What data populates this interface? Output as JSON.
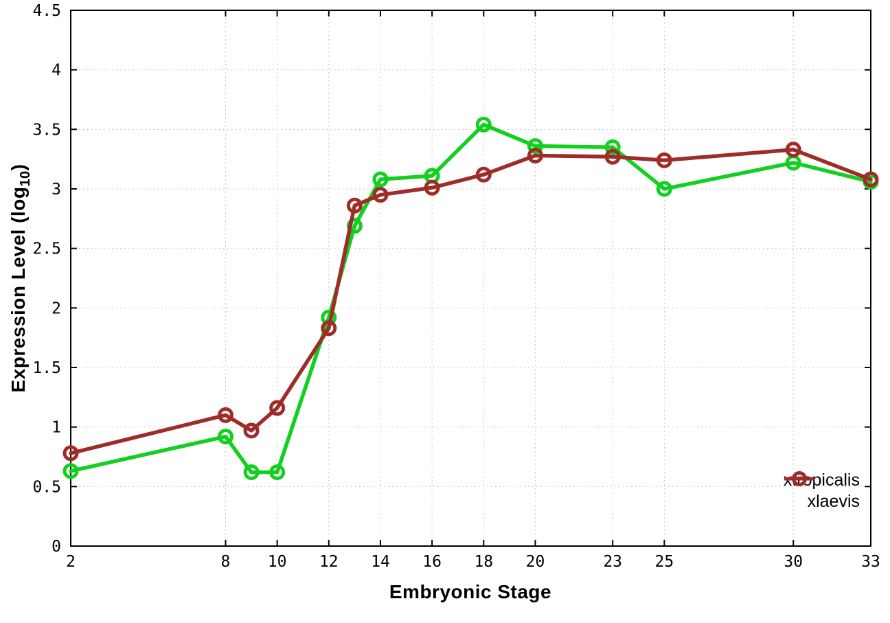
{
  "chart_data": {
    "type": "line",
    "title": "",
    "xlabel": "Embryonic Stage",
    "ylabel": "Expression Level (log10)",
    "ylabel_parts": {
      "main": "Expression Level (log",
      "sub": "10",
      "end": ")"
    },
    "x": [
      2,
      8,
      9,
      10,
      12,
      13,
      14,
      16,
      18,
      20,
      23,
      25,
      30,
      33
    ],
    "series": [
      {
        "name": "xtropicalis",
        "color": "#12d01f",
        "values": [
          0.63,
          0.92,
          0.62,
          0.62,
          1.92,
          2.69,
          3.08,
          3.11,
          3.54,
          3.36,
          3.35,
          3.0,
          3.22,
          3.06
        ]
      },
      {
        "name": "xlaevis",
        "color": "#9e2c28",
        "values": [
          0.78,
          1.1,
          0.97,
          1.16,
          1.83,
          2.86,
          2.95,
          3.01,
          3.12,
          3.28,
          3.27,
          3.24,
          3.33,
          3.08
        ]
      }
    ],
    "xticks": [
      2,
      8,
      10,
      12,
      14,
      16,
      18,
      20,
      23,
      25,
      30,
      33
    ],
    "yticks": [
      0,
      0.5,
      1,
      1.5,
      2,
      2.5,
      3,
      3.5,
      4,
      4.5
    ],
    "xlim": [
      2,
      33
    ],
    "ylim": [
      0,
      4.5
    ],
    "grid": true,
    "grid_color": "#b5b5b5",
    "border_color": "#000000",
    "legend_position": "bottom-right"
  }
}
